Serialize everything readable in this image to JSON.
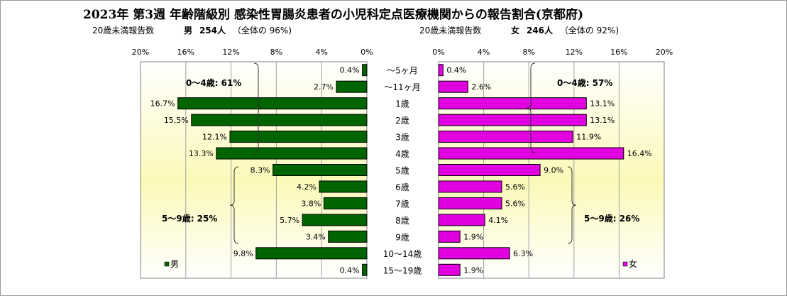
{
  "title": "2023年 第3週  年齢階級別 感染性胃腸炎患者の小児科定点医療機関からの報告割合(京都府)",
  "male_header": {
    "label": "20歳未満報告数",
    "sex": "男",
    "count": "254人",
    "share": "（全体の  96%)"
  },
  "female_header": {
    "label": "20歳未満報告数",
    "sex": "女",
    "count": "246人",
    "share": "（全体の  92%)"
  },
  "chart_data": {
    "type": "bar",
    "orientation": "horizontal-butterfly",
    "categories": [
      "～5ヶ月",
      "～11ヶ月",
      "1歳",
      "2歳",
      "3歳",
      "4歳",
      "5歳",
      "6歳",
      "7歳",
      "8歳",
      "9歳",
      "10～14歳",
      "15～19歳"
    ],
    "series": [
      {
        "name": "男",
        "color": "#006400",
        "values": [
          0.4,
          2.7,
          16.7,
          15.5,
          12.1,
          13.3,
          8.3,
          4.2,
          3.8,
          5.7,
          3.4,
          9.8,
          0.4
        ],
        "labels": [
          "0.4%",
          "2.7%",
          "16.7%",
          "15.5%",
          "12.1%",
          "13.3%",
          "8.3%",
          "4.2%",
          "3.8%",
          "5.7%",
          "3.4%",
          "9.8%",
          "0.4%"
        ]
      },
      {
        "name": "女",
        "color": "#E000E0",
        "values": [
          0.4,
          2.6,
          13.1,
          13.1,
          11.9,
          16.4,
          9.0,
          5.6,
          5.6,
          4.1,
          1.9,
          6.3,
          1.9
        ],
        "labels": [
          "0.4%",
          "2.6%",
          "13.1%",
          "13.1%",
          "11.9%",
          "16.4%",
          "9.0%",
          "5.6%",
          "5.6%",
          "4.1%",
          "1.9%",
          "6.3%",
          "1.9%"
        ]
      }
    ],
    "ticks": [
      "20%",
      "16%",
      "12%",
      "8%",
      "4%",
      "0%"
    ],
    "female_ticks": [
      "0%",
      "4%",
      "8%",
      "12%",
      "16%",
      "20%"
    ],
    "xlim": [
      0,
      20
    ],
    "grid": true,
    "annotations": {
      "male_0_4": "0～4歳: 61%",
      "male_5_9": "5～9歳: 25%",
      "female_0_4": "0～4歳: 57%",
      "female_5_9": "5～9歳: 26%"
    },
    "legend": {
      "male": "男",
      "female": "女"
    }
  }
}
